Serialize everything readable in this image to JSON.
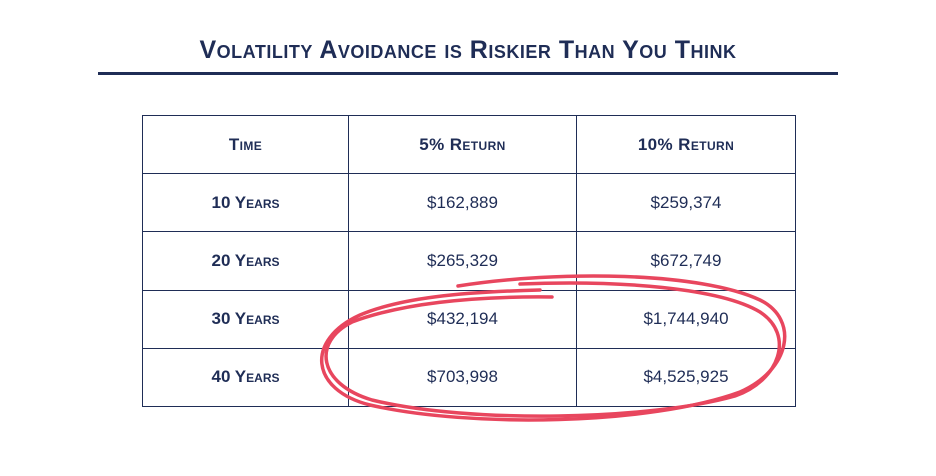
{
  "title": "Volatility Avoidance is Riskier Than You Think",
  "table": {
    "headers": [
      "Time",
      "5% Return",
      "10% Return"
    ],
    "rows": [
      [
        "10 Years",
        "$162,889",
        "$259,374"
      ],
      [
        "20 Years",
        "$265,329",
        "$672,749"
      ],
      [
        "30 Years",
        "$432,194",
        "$1,744,940"
      ],
      [
        "40 Years",
        "$703,998",
        "$4,525,925"
      ]
    ]
  },
  "colors": {
    "text": "#1f2d56",
    "highlight_circle": "#e8465e"
  }
}
